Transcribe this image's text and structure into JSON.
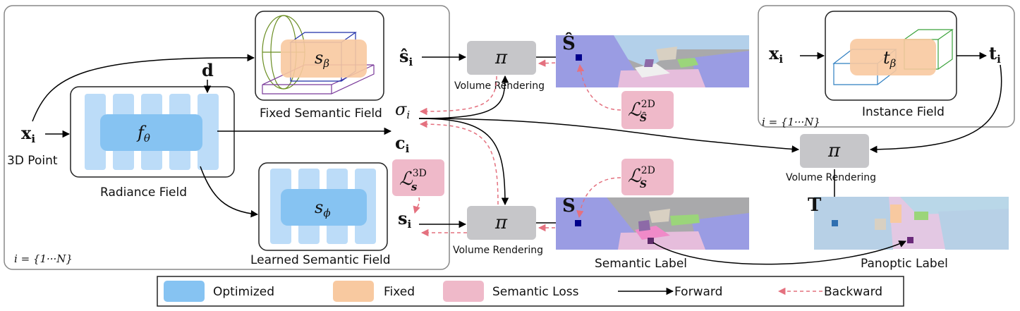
{
  "colors": {
    "optimized": "#86c3f2",
    "optimized_light": "#bcdcf8",
    "fixed": "#f8c9a0",
    "semantic_loss": "#efb9c9",
    "pi_box": "#c6c6c9",
    "backward": "#e4717f",
    "forward": "#000000",
    "panel_border": "#888888"
  },
  "left_panel": {
    "input_point": "x",
    "input_point_sub": "i",
    "input_caption": "3D Point",
    "view_dir": "d",
    "radiance_fn": "f",
    "radiance_fn_sub": "θ",
    "radiance_label": "Radiance Field",
    "fixed_fn": "s",
    "fixed_fn_sub": "β",
    "fixed_label": "Fixed Semantic Field",
    "learned_fn": "s",
    "learned_fn_sub": "ϕ",
    "learned_label": "Learned Semantic Field",
    "index_range": "i = {1···N}"
  },
  "symbols": {
    "s_hat_i": "ŝ",
    "s_hat_i_sub": "i",
    "sigma_i": "σ",
    "sigma_i_sub": "i",
    "c_i": "c",
    "c_i_sub": "i",
    "s_i": "s",
    "s_i_sub": "i",
    "pi": "π",
    "S_hat": "Ŝ",
    "S": "S",
    "T": "T",
    "t_i": "t",
    "t_i_sub": "i",
    "x_i": "x",
    "x_i_sub": "i"
  },
  "losses": {
    "loss_2d_hat": "ℒ",
    "loss_2d_hat_sup": "2D",
    "loss_2d_hat_sub": "Ŝ",
    "loss_2d": "ℒ",
    "loss_2d_sup": "2D",
    "loss_2d_sub": "S",
    "loss_3d": "ℒ",
    "loss_3d_sup": "3D",
    "loss_3d_sub": "s"
  },
  "render_labels": {
    "top": "Volume Rendering",
    "bottom": "Volume Rendering",
    "right": "Volume Rendering"
  },
  "image_labels": {
    "semantic": "Semantic Label",
    "panoptic": "Panoptic Label"
  },
  "instance_panel": {
    "fn": "t",
    "fn_sub": "β",
    "label": "Instance Field",
    "index_range": "i = {1···N}"
  },
  "legend": {
    "optimized": "Optimized",
    "fixed": "Fixed",
    "semantic_loss": "Semantic Loss",
    "forward": "Forward",
    "backward": "Backward"
  }
}
